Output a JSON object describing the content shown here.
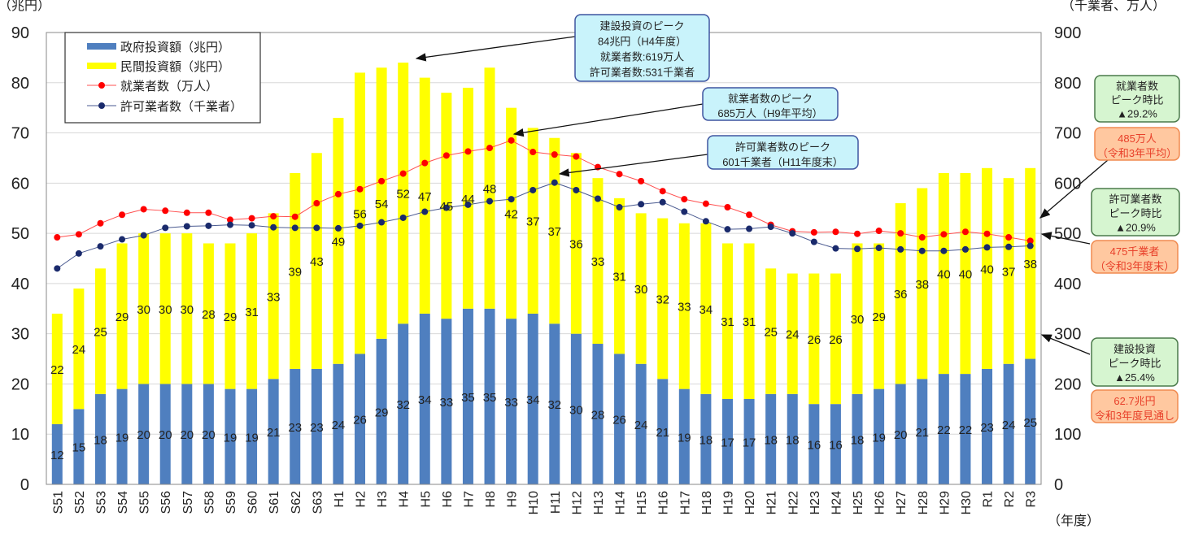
{
  "chart_data": {
    "type": "bar",
    "stacked": true,
    "left_axis_unit": "（兆円）",
    "right_axis_unit": "（千業者、万人）",
    "xlabel": "（年度）",
    "ylim": [
      0,
      90
    ],
    "y2lim": [
      0,
      900
    ],
    "yticks": [
      0,
      10,
      20,
      30,
      40,
      50,
      60,
      70,
      80,
      90
    ],
    "y2ticks": [
      0,
      100,
      200,
      300,
      400,
      500,
      600,
      700,
      800,
      900
    ],
    "grid": true,
    "legend_position": "top-left",
    "categories": [
      "S51",
      "S52",
      "S53",
      "S54",
      "S55",
      "S56",
      "S57",
      "S58",
      "S59",
      "S60",
      "S61",
      "S62",
      "S63",
      "H1",
      "H2",
      "H3",
      "H4",
      "H5",
      "H6",
      "H7",
      "H8",
      "H9",
      "H10",
      "H11",
      "H12",
      "H13",
      "H14",
      "H15",
      "H16",
      "H17",
      "H18",
      "H19",
      "H20",
      "H21",
      "H22",
      "H23",
      "H24",
      "H25",
      "H26",
      "H27",
      "H28",
      "H29",
      "H30",
      "R1",
      "R2",
      "R3"
    ],
    "series": [
      {
        "name": "政府投資額（兆円）",
        "type": "bar",
        "axis": "left",
        "color": "#4f7fbf",
        "values": [
          12,
          15,
          18,
          19,
          20,
          20,
          20,
          20,
          19,
          19,
          21,
          23,
          23,
          24,
          26,
          29,
          32,
          34,
          33,
          35,
          35,
          33,
          34,
          32,
          30,
          28,
          26,
          24,
          21,
          19,
          18,
          17,
          17,
          18,
          18,
          16,
          16,
          18,
          19,
          20,
          21,
          22,
          22,
          23,
          24,
          25
        ]
      },
      {
        "name": "民間投資額（兆円）",
        "type": "bar",
        "axis": "left",
        "color": "#ffff00",
        "values": [
          22,
          24,
          25,
          29,
          30,
          30,
          30,
          28,
          29,
          31,
          33,
          39,
          43,
          49,
          56,
          54,
          52,
          47,
          45,
          44,
          48,
          42,
          37,
          37,
          36,
          33,
          31,
          30,
          32,
          33,
          34,
          31,
          31,
          25,
          24,
          26,
          26,
          30,
          29,
          36,
          38,
          40,
          40,
          40,
          37,
          38
        ]
      },
      {
        "name": "就業者数（万人）",
        "type": "line",
        "axis": "right",
        "color": "#ff0000",
        "values": [
          492,
          498,
          520,
          537,
          548,
          545,
          541,
          541,
          527,
          530,
          534,
          533,
          560,
          578,
          588,
          604,
          619,
          640,
          655,
          663,
          670,
          685,
          662,
          657,
          653,
          632,
          618,
          604,
          584,
          568,
          559,
          552,
          537,
          517,
          504,
          502,
          503,
          499,
          505,
          500,
          492,
          498,
          503,
          499,
          492,
          485
        ]
      },
      {
        "name": "許可業者数（千業者）",
        "type": "line",
        "axis": "right",
        "color": "#1a2a6c",
        "values": [
          430,
          460,
          474,
          488,
          496,
          511,
          514,
          515,
          517,
          516,
          512,
          511,
          511,
          510,
          515,
          522,
          531,
          543,
          551,
          557,
          564,
          568,
          586,
          601,
          586,
          569,
          552,
          558,
          562,
          543,
          524,
          508,
          509,
          513,
          500,
          483,
          470,
          469,
          471,
          468,
          465,
          465,
          468,
          472,
          473,
          475
        ]
      }
    ],
    "annotations": [
      {
        "lines": [
          "建設投資のピーク",
          "84兆円（H4年度）",
          "就業者数:619万人",
          "許可業者数:531千業者"
        ],
        "style": "cyan"
      },
      {
        "lines": [
          "就業者数のピーク",
          "685万人（H9年平均）"
        ],
        "style": "cyan"
      },
      {
        "lines": [
          "許可業者数のピーク",
          "601千業者（H11年度末）"
        ],
        "style": "cyan"
      },
      {
        "lines": [
          "就業者数",
          "ピーク時比",
          "▲29.2%"
        ],
        "style": "green"
      },
      {
        "lines": [
          "485万人",
          "（令和3年平均）"
        ],
        "style": "orange"
      },
      {
        "lines": [
          "許可業者数",
          "ピーク時比",
          "▲20.9%"
        ],
        "style": "green"
      },
      {
        "lines": [
          "475千業者",
          "（令和3年度末）"
        ],
        "style": "orange"
      },
      {
        "lines": [
          "建設投資",
          "ピーク時比",
          "▲25.4%"
        ],
        "style": "green"
      },
      {
        "lines": [
          "62.7兆円",
          "令和3年度見通し"
        ],
        "style": "orange"
      }
    ]
  }
}
